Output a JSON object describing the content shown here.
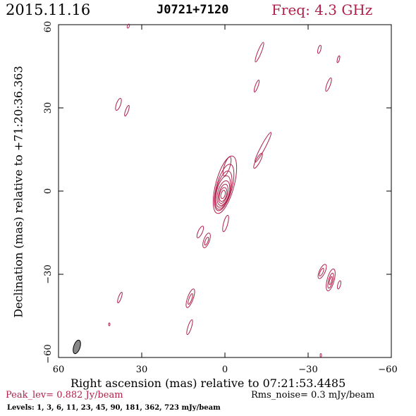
{
  "header": {
    "date": "2015.11.16",
    "source": "J0721+7120",
    "freq": "Freq: 4.3 GHz"
  },
  "axes": {
    "xlabel": "Right ascension (mas) relative to 07:21:53.4485",
    "ylabel": "Declination (mas) relative to +71:20:36.363",
    "x_ticks": [
      "60",
      "30",
      "0",
      "−30",
      "−60"
    ],
    "y_ticks": [
      "60",
      "30",
      "0",
      "−30",
      "−60"
    ]
  },
  "footer": {
    "peak": "Peak_lev=  0.882 Jy/beam",
    "rms": "Rms_noise=  0.3 mJy/beam",
    "levels": "Levels:   1,   3,   6,  11,  23,  45,  90, 181, 362, 723 mJy/beam"
  },
  "colors": {
    "contour": "#b0204a",
    "beam_fill": "#888888"
  }
}
